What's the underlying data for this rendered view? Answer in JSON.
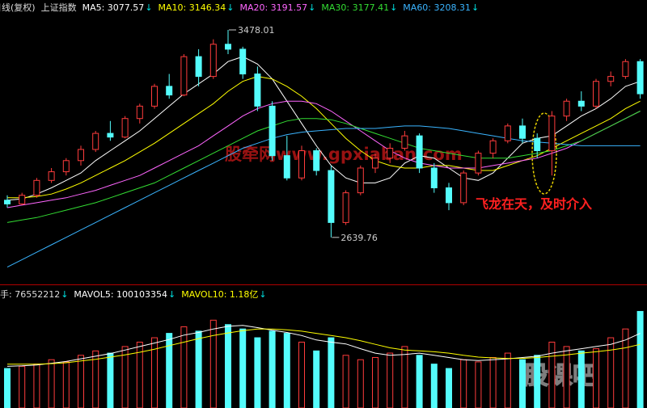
{
  "chart_data": {
    "type": "candlestick",
    "period": "日线(复权)",
    "title": "上证指数",
    "up_color": "#ff3c3c",
    "down_color": "#54fcfc",
    "ylim": [
      2450,
      3540
    ],
    "open": [
      2790,
      2775,
      2810,
      2870,
      2905,
      2950,
      2995,
      3060,
      3045,
      3120,
      3170,
      3250,
      3215,
      3370,
      3290,
      3420,
      3400,
      3300,
      3170,
      2970,
      2880,
      2990,
      2910,
      2700,
      2820,
      2920,
      2960,
      3000,
      3050,
      2920,
      2840,
      2780,
      2900,
      2980,
      3030,
      3090,
      3040,
      2990,
      3130,
      3190,
      3170,
      3270,
      3290,
      3350
    ],
    "high": [
      2810,
      2820,
      2880,
      2920,
      2960,
      3010,
      3070,
      3110,
      3130,
      3180,
      3260,
      3300,
      3380,
      3400,
      3440,
      3478.01,
      3410,
      3330,
      3190,
      3050,
      3010,
      3000,
      2930,
      2830,
      2930,
      2980,
      3020,
      3070,
      3060,
      2940,
      2860,
      2910,
      2990,
      3040,
      3100,
      3120,
      3060,
      3150,
      3200,
      3230,
      3280,
      3310,
      3360,
      3360
    ],
    "low": [
      2760,
      2770,
      2800,
      2860,
      2890,
      2930,
      2985,
      3030,
      3040,
      3100,
      3160,
      3200,
      3210,
      3250,
      3280,
      3380,
      3280,
      3150,
      2950,
      2870,
      2870,
      2890,
      2639.76,
      2690,
      2810,
      2900,
      2940,
      2990,
      2900,
      2820,
      2750,
      2770,
      2890,
      2960,
      3020,
      3020,
      2960,
      2890,
      3110,
      3150,
      3160,
      3250,
      3280,
      3200
    ],
    "close": [
      2775,
      2810,
      2870,
      2905,
      2950,
      2995,
      3060,
      3045,
      3120,
      3170,
      3250,
      3215,
      3370,
      3290,
      3420,
      3400,
      3300,
      3170,
      2970,
      2880,
      2990,
      2910,
      2700,
      2820,
      2920,
      2960,
      3000,
      3050,
      2920,
      2840,
      2780,
      2900,
      2980,
      3030,
      3090,
      3040,
      2990,
      3130,
      3190,
      3170,
      3270,
      3290,
      3350,
      3220
    ],
    "series": [
      {
        "name": "MA5: 3077.57",
        "trend": "↓",
        "color": "#ffffff",
        "values": [
          2790,
          2795,
          2815,
          2840,
          2870,
          2900,
          2950,
          2990,
          3030,
          3070,
          3120,
          3170,
          3220,
          3260,
          3300,
          3350,
          3370,
          3340,
          3280,
          3190,
          3100,
          3010,
          2930,
          2880,
          2860,
          2860,
          2880,
          2940,
          2970,
          2960,
          2920,
          2880,
          2870,
          2900,
          2960,
          3020,
          3040,
          3050,
          3090,
          3130,
          3160,
          3200,
          3250,
          3270
        ]
      },
      {
        "name": "MA10: 3146.34",
        "trend": "↓",
        "color": "#ffff00",
        "values": [
          2800,
          2800,
          2805,
          2815,
          2835,
          2860,
          2890,
          2920,
          2950,
          2985,
          3020,
          3060,
          3100,
          3140,
          3180,
          3230,
          3270,
          3290,
          3280,
          3250,
          3210,
          3160,
          3100,
          3040,
          2990,
          2950,
          2930,
          2920,
          2920,
          2930,
          2930,
          2920,
          2910,
          2910,
          2930,
          2950,
          2970,
          3000,
          3030,
          3060,
          3090,
          3120,
          3160,
          3190
        ]
      },
      {
        "name": "MA20: 3191.57",
        "trend": "↓",
        "color": "#ff66ff",
        "values": [
          2760,
          2770,
          2780,
          2790,
          2800,
          2815,
          2830,
          2850,
          2870,
          2890,
          2920,
          2950,
          2980,
          3010,
          3050,
          3090,
          3130,
          3160,
          3180,
          3190,
          3190,
          3180,
          3150,
          3110,
          3070,
          3030,
          2990,
          2960,
          2940,
          2930,
          2920,
          2920,
          2920,
          2930,
          2940,
          2950,
          2960,
          2980,
          3000,
          3030,
          3060,
          3090,
          3120,
          3150
        ]
      },
      {
        "name": "MA30: 3177.41",
        "trend": "↓",
        "color": "#33dd33",
        "values": [
          2700,
          2710,
          2720,
          2735,
          2750,
          2765,
          2780,
          2800,
          2820,
          2840,
          2860,
          2890,
          2920,
          2950,
          2980,
          3010,
          3040,
          3070,
          3090,
          3110,
          3120,
          3120,
          3115,
          3100,
          3080,
          3060,
          3040,
          3020,
          3000,
          2990,
          2980,
          2970,
          2960,
          2960,
          2960,
          2970,
          2980,
          2990,
          3010,
          3030,
          3060,
          3090,
          3120,
          3150
        ]
      },
      {
        "name": "MA60: 3208.31",
        "trend": "↓",
        "color": "#3ab4ff",
        "values": [
          2520,
          2550,
          2580,
          2610,
          2640,
          2670,
          2700,
          2730,
          2760,
          2790,
          2820,
          2850,
          2880,
          2910,
          2940,
          2970,
          3000,
          3020,
          3040,
          3055,
          3065,
          3070,
          3075,
          3080,
          3080,
          3080,
          3085,
          3090,
          3090,
          3085,
          3080,
          3070,
          3060,
          3050,
          3040,
          3030,
          3025,
          3020,
          3015,
          3010,
          3010,
          3010,
          3010,
          3010
        ]
      }
    ],
    "callout": "飞龙在天，及时介入",
    "watermarks": [
      "股牵网www.gpxiaban.com",
      "股课吧"
    ],
    "volume": {
      "label": "手: 76552212",
      "trend": "↓",
      "ylim": [
        0,
        230000000
      ],
      "values": [
        90000000,
        95000000,
        100000000,
        110000000,
        105000000,
        120000000,
        130000000,
        125000000,
        140000000,
        150000000,
        160000000,
        170000000,
        185000000,
        175000000,
        200000000,
        190000000,
        180000000,
        160000000,
        175000000,
        170000000,
        150000000,
        130000000,
        160000000,
        120000000,
        110000000,
        115000000,
        125000000,
        140000000,
        120000000,
        100000000,
        90000000,
        110000000,
        105000000,
        115000000,
        125000000,
        110000000,
        120000000,
        150000000,
        140000000,
        130000000,
        135000000,
        160000000,
        180000000,
        220000000
      ],
      "series": [
        {
          "name": "MAVOL5: 100103354",
          "trend": "↓",
          "color": "#ffffff",
          "values": [
            95000000,
            96000000,
            98000000,
            102000000,
            106000000,
            112000000,
            118000000,
            124000000,
            132000000,
            140000000,
            148000000,
            156000000,
            166000000,
            172000000,
            180000000,
            186000000,
            188000000,
            183000000,
            177000000,
            172000000,
            165000000,
            155000000,
            150000000,
            146000000,
            135000000,
            125000000,
            120000000,
            122000000,
            125000000,
            120000000,
            115000000,
            110000000,
            108000000,
            110000000,
            112000000,
            115000000,
            118000000,
            125000000,
            130000000,
            135000000,
            140000000,
            145000000,
            155000000,
            170000000
          ]
        },
        {
          "name": "MAVOL10: 1.18亿",
          "trend": "↓",
          "color": "#ffff00",
          "values": [
            100000000,
            100000000,
            100000000,
            101000000,
            103000000,
            107000000,
            111000000,
            116000000,
            121000000,
            127000000,
            134000000,
            142000000,
            150000000,
            158000000,
            165000000,
            171000000,
            176000000,
            180000000,
            180000000,
            178000000,
            175000000,
            170000000,
            165000000,
            160000000,
            153000000,
            145000000,
            137000000,
            132000000,
            130000000,
            128000000,
            125000000,
            120000000,
            116000000,
            114000000,
            113000000,
            113000000,
            115000000,
            118000000,
            121000000,
            125000000,
            128000000,
            132000000,
            137000000,
            145000000
          ]
        }
      ]
    }
  }
}
